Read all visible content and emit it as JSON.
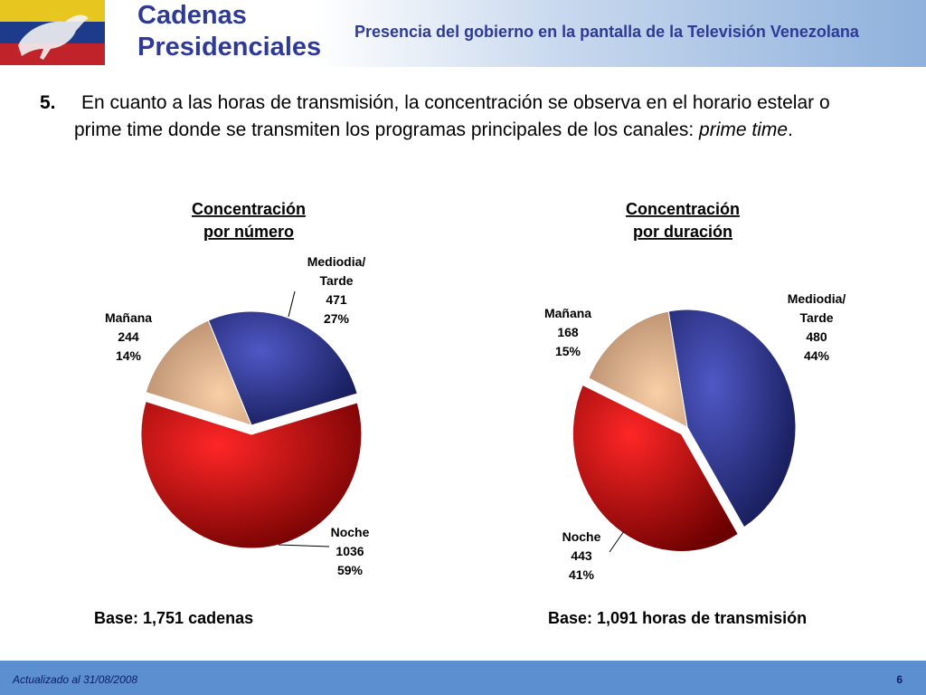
{
  "header": {
    "title_line1": "Cadenas",
    "title_line2": "Presidenciales",
    "subtitle": "Presencia del gobierno en la pantalla de la Televisión Venezolana"
  },
  "point": {
    "number": "5.",
    "line1": "En cuanto a las horas de transmisión, la concentración se observa en el horario estelar o",
    "line2_prefix": "prime time donde se transmiten los programas principales de los canales: ",
    "line2_em": "prime time",
    "line2_suffix": "."
  },
  "chart_data": [
    {
      "type": "pie",
      "title": "Concentración por número",
      "title_line1": "Concentración ",
      "title_line2": "por número",
      "base": "Base: 1,751 cadenas",
      "slices": [
        {
          "name": "Mediodia/ Tarde",
          "label_line1": "Mediodia/",
          "label_line2": "Tarde",
          "value": 471,
          "value_label": "471",
          "percent": "27%",
          "color": "#2a2f86"
        },
        {
          "name": "Noche",
          "label_line1": "Noche",
          "label_line2": "",
          "value": 1036,
          "value_label": "1036",
          "percent": "59%",
          "color": "#d40f10"
        },
        {
          "name": "Mañana",
          "label_line1": "Mañana",
          "label_line2": "",
          "value": 244,
          "value_label": "244",
          "percent": "14%",
          "color": "#eab48a"
        }
      ]
    },
    {
      "type": "pie",
      "title": "Concentración por duración",
      "title_line1": "Concentración ",
      "title_line2": "por duración",
      "base": "Base: 1,091 horas de transmisión",
      "slices": [
        {
          "name": "Mediodia/ Tarde",
          "label_line1": "Mediodia/",
          "label_line2": "Tarde",
          "value": 480,
          "value_label": "480",
          "percent": "44%",
          "color": "#2a2f86"
        },
        {
          "name": "Noche",
          "label_line1": "Noche",
          "label_line2": "",
          "value": 443,
          "value_label": "443",
          "percent": "41%",
          "color": "#d40f10"
        },
        {
          "name": "Mañana",
          "label_line1": "Mañana",
          "label_line2": "",
          "value": 168,
          "value_label": "168",
          "percent": "15%",
          "color": "#eab48a"
        }
      ]
    }
  ],
  "footer": {
    "updated": "Actualizado al 31/08/2008",
    "page": "6"
  }
}
